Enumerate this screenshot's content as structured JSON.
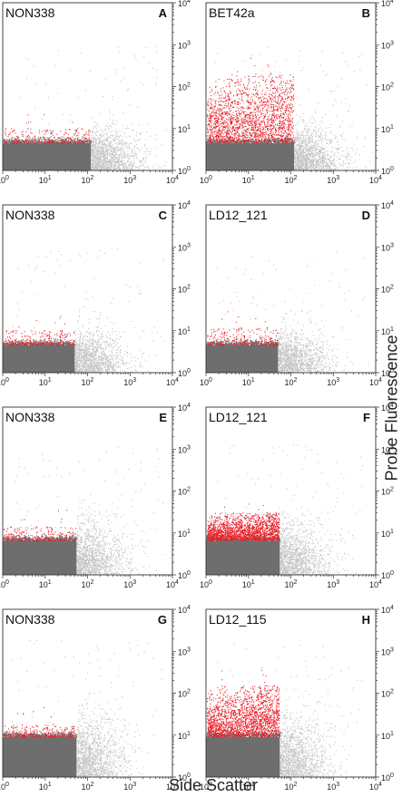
{
  "figure": {
    "x_axis_title": "Side Scatter",
    "y_axis_title": "Probe Fluorescence"
  },
  "chart_data": [
    {
      "type": "scatter",
      "panel": "A",
      "sample_label": "NON338",
      "xlabel": "Side Scatter",
      "ylabel": "Probe Fluorescence",
      "xscale": "log",
      "yscale": "log",
      "xlim": [
        1,
        10000
      ],
      "ylim": [
        1,
        10000
      ],
      "x_ticks": [
        "10^0",
        "10^1",
        "10^2",
        "10^3",
        "10^4"
      ],
      "y_ticks": [
        "10^0",
        "10^1",
        "10^2",
        "10^3",
        "10^4"
      ],
      "gate": {
        "x_max": 120,
        "y_max": 4.5
      },
      "positive_color": "#e8212a",
      "gated_color": "#6e6e6e",
      "background_color": "#c4c4c4",
      "positive_fraction": "low",
      "positive_y_range": [
        4.5,
        10
      ]
    },
    {
      "type": "scatter",
      "panel": "B",
      "sample_label": "BET42a",
      "xlabel": "Side Scatter",
      "ylabel": "Probe Fluorescence",
      "xscale": "log",
      "yscale": "log",
      "xlim": [
        1,
        10000
      ],
      "ylim": [
        1,
        10000
      ],
      "x_ticks": [
        "10^0",
        "10^1",
        "10^2",
        "10^3",
        "10^4"
      ],
      "y_ticks": [
        "10^0",
        "10^1",
        "10^2",
        "10^3",
        "10^4"
      ],
      "gate": {
        "x_max": 120,
        "y_max": 4.5
      },
      "positive_color": "#e8212a",
      "gated_color": "#6e6e6e",
      "background_color": "#c4c4c4",
      "positive_fraction": "high",
      "positive_y_range": [
        4.5,
        200
      ]
    },
    {
      "type": "scatter",
      "panel": "C",
      "sample_label": "NON338",
      "xlabel": "Side Scatter",
      "ylabel": "Probe Fluorescence",
      "xscale": "log",
      "yscale": "log",
      "xlim": [
        1,
        10000
      ],
      "ylim": [
        1,
        10000
      ],
      "x_ticks": [
        "10^0",
        "10^1",
        "10^2",
        "10^3",
        "10^4"
      ],
      "y_ticks": [
        "10^0",
        "10^1",
        "10^2",
        "10^3",
        "10^4"
      ],
      "gate": {
        "x_max": 50,
        "y_max": 4.5
      },
      "positive_color": "#e8212a",
      "gated_color": "#6e6e6e",
      "background_color": "#c4c4c4",
      "positive_fraction": "low",
      "positive_y_range": [
        4.5,
        10
      ]
    },
    {
      "type": "scatter",
      "panel": "D",
      "sample_label": "LD12_121",
      "xlabel": "Side Scatter",
      "ylabel": "Probe Fluorescence",
      "xscale": "log",
      "yscale": "log",
      "xlim": [
        1,
        10000
      ],
      "ylim": [
        1,
        10000
      ],
      "x_ticks": [
        "10^0",
        "10^1",
        "10^2",
        "10^3",
        "10^4"
      ],
      "y_ticks": [
        "10^0",
        "10^1",
        "10^2",
        "10^3",
        "10^4"
      ],
      "gate": {
        "x_max": 50,
        "y_max": 4.5
      },
      "positive_color": "#e8212a",
      "gated_color": "#6e6e6e",
      "background_color": "#c4c4c4",
      "positive_fraction": "low",
      "positive_y_range": [
        4.5,
        12
      ]
    },
    {
      "type": "scatter",
      "panel": "E",
      "sample_label": "NON338",
      "xlabel": "Side Scatter",
      "ylabel": "Probe Fluorescence",
      "xscale": "log",
      "yscale": "log",
      "xlim": [
        1,
        10000
      ],
      "ylim": [
        1,
        10000
      ],
      "x_ticks": [
        "10^0",
        "10^1",
        "10^2",
        "10^3",
        "10^4"
      ],
      "y_ticks": [
        "10^0",
        "10^1",
        "10^2",
        "10^3",
        "10^4"
      ],
      "gate": {
        "x_max": 55,
        "y_max": 6.5
      },
      "positive_color": "#e8212a",
      "gated_color": "#6e6e6e",
      "background_color": "#c4c4c4",
      "positive_fraction": "low",
      "positive_y_range": [
        6.5,
        14
      ]
    },
    {
      "type": "scatter",
      "panel": "F",
      "sample_label": "LD12_121",
      "xlabel": "Side Scatter",
      "ylabel": "Probe Fluorescence",
      "xscale": "log",
      "yscale": "log",
      "xlim": [
        1,
        10000
      ],
      "ylim": [
        1,
        10000
      ],
      "x_ticks": [
        "10^0",
        "10^1",
        "10^2",
        "10^3",
        "10^4"
      ],
      "y_ticks": [
        "10^0",
        "10^1",
        "10^2",
        "10^3",
        "10^4"
      ],
      "gate": {
        "x_max": 55,
        "y_max": 6.5
      },
      "positive_color": "#e8212a",
      "gated_color": "#6e6e6e",
      "background_color": "#c4c4c4",
      "positive_fraction": "high",
      "positive_y_range": [
        6.5,
        30
      ]
    },
    {
      "type": "scatter",
      "panel": "G",
      "sample_label": "NON338",
      "xlabel": "Side Scatter",
      "ylabel": "Probe Fluorescence",
      "xscale": "log",
      "yscale": "log",
      "xlim": [
        1,
        10000
      ],
      "ylim": [
        1,
        10000
      ],
      "x_ticks": [
        "10^0",
        "10^1",
        "10^2",
        "10^3",
        "10^4"
      ],
      "y_ticks": [
        "10^0",
        "10^1",
        "10^2",
        "10^3",
        "10^4"
      ],
      "gate": {
        "x_max": 55,
        "y_max": 9
      },
      "positive_color": "#e8212a",
      "gated_color": "#6e6e6e",
      "background_color": "#c4c4c4",
      "positive_fraction": "low",
      "positive_y_range": [
        9,
        18
      ]
    },
    {
      "type": "scatter",
      "panel": "H",
      "sample_label": "LD12_115",
      "xlabel": "Side Scatter",
      "ylabel": "Probe Fluorescence",
      "xscale": "log",
      "yscale": "log",
      "xlim": [
        1,
        10000
      ],
      "ylim": [
        1,
        10000
      ],
      "x_ticks": [
        "10^0",
        "10^1",
        "10^2",
        "10^3",
        "10^4"
      ],
      "y_ticks": [
        "10^0",
        "10^1",
        "10^2",
        "10^3",
        "10^4"
      ],
      "gate": {
        "x_max": 55,
        "y_max": 9
      },
      "positive_color": "#e8212a",
      "gated_color": "#6e6e6e",
      "background_color": "#c4c4c4",
      "positive_fraction": "high",
      "positive_y_range": [
        9,
        150
      ]
    }
  ]
}
